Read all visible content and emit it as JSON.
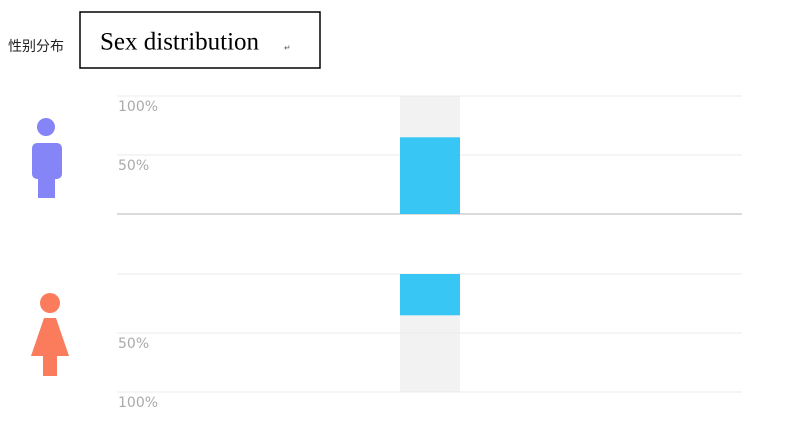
{
  "header": {
    "label": "性别分布",
    "title": "Sex distribution",
    "mark": "↵"
  },
  "chart_data": [
    {
      "type": "bar",
      "categories": [
        null
      ],
      "values": [
        65
      ],
      "color": "#38c6f4",
      "ylim": [
        0,
        100
      ],
      "yticks": [
        {
          "value": 50,
          "label": "50%"
        },
        {
          "value": 100,
          "label": "100%"
        }
      ],
      "inverted": false,
      "grid": true
    },
    {
      "type": "bar",
      "categories": [
        null
      ],
      "values": [
        35
      ],
      "color": "#38c6f4",
      "ylim": [
        0,
        100
      ],
      "yticks": [
        {
          "value": 50,
          "label": "50%"
        },
        {
          "value": 100,
          "label": "100%"
        }
      ],
      "inverted": true,
      "grid": true
    }
  ]
}
